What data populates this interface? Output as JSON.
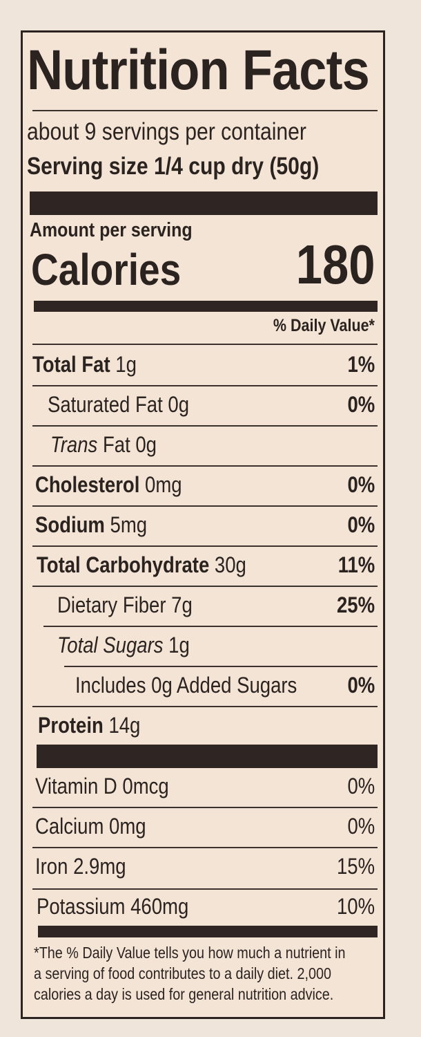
{
  "title": "Nutrition Facts",
  "servings_per_container": "about 9 servings per container",
  "serving_size_label": "Serving size",
  "serving_size_value": "1/4 cup dry (50g)",
  "amount_per_serving": "Amount per serving",
  "calories_label": "Calories",
  "calories_value": "180",
  "dv_header": "% Daily Value*",
  "nutrients": [
    {
      "name": "Total Fat",
      "amount": "1g",
      "dv": "1%"
    },
    {
      "name": "Saturated Fat",
      "amount": "0g",
      "dv": "0%"
    },
    {
      "name": "Trans",
      "name_rest": "Fat",
      "amount": "0g"
    },
    {
      "name": "Cholesterol",
      "amount": "0mg",
      "dv": "0%"
    },
    {
      "name": "Sodium",
      "amount": "5mg",
      "dv": "0%"
    },
    {
      "name": "Total Carbohydrate",
      "amount": "30g",
      "dv": "11%"
    },
    {
      "name": "Dietary Fiber",
      "amount": "7g",
      "dv": "25%"
    },
    {
      "name": "Total Sugars",
      "amount": "1g"
    },
    {
      "name": "Includes 0g Added Sugars",
      "dv": "0%"
    },
    {
      "name": "Protein",
      "amount": "14g"
    }
  ],
  "vitamins": [
    {
      "name": "Vitamin D",
      "amount": "0mcg",
      "dv": "0%"
    },
    {
      "name": "Calcium",
      "amount": "0mg",
      "dv": "0%"
    },
    {
      "name": "Iron",
      "amount": "2.9mg",
      "dv": "15%"
    },
    {
      "name": "Potassium",
      "amount": "460mg",
      "dv": "10%"
    }
  ],
  "footnote": [
    "*The % Daily Value tells you how much a nutrient in",
    "a serving of food contributes to a daily diet. 2,000",
    "calories a day is used for general nutrition advice."
  ]
}
